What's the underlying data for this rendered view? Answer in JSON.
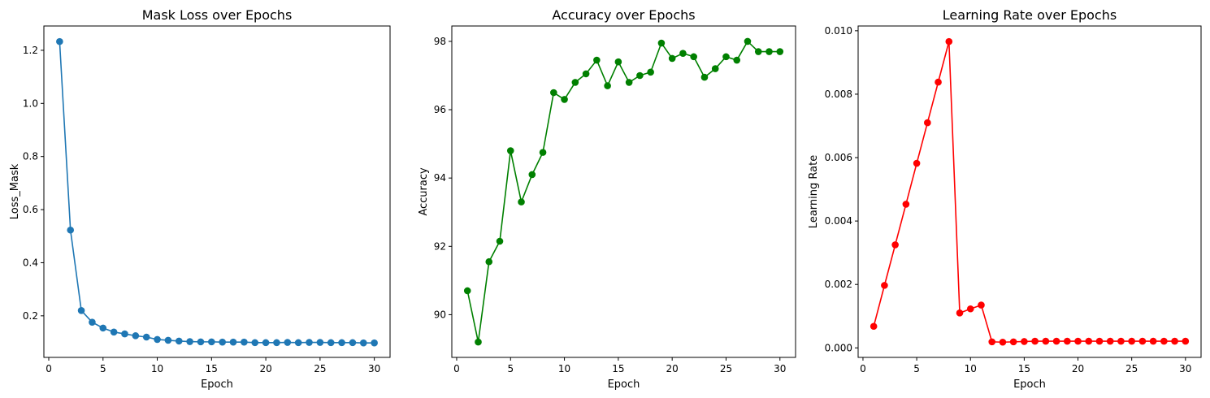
{
  "chart_data": [
    {
      "type": "line",
      "title": "Mask Loss over Epochs",
      "xlabel": "Epoch",
      "ylabel": "Loss_Mask",
      "color": "#1f77b4",
      "marker": "circle",
      "grid": false,
      "xlim": [
        -0.45,
        31.45
      ],
      "ylim": [
        0.0435,
        1.2915
      ],
      "xticks": [
        0,
        5,
        10,
        15,
        20,
        25,
        30
      ],
      "yticks": [
        0.2,
        0.4,
        0.6,
        0.8,
        1.0,
        1.2
      ],
      "ytick_labels": [
        "0.2",
        "0.4",
        "0.6",
        "0.8",
        "1.0",
        "1.2"
      ],
      "x": [
        1,
        2,
        3,
        4,
        5,
        6,
        7,
        8,
        9,
        10,
        11,
        12,
        13,
        14,
        15,
        16,
        17,
        18,
        19,
        20,
        21,
        22,
        23,
        24,
        25,
        26,
        27,
        28,
        29,
        30
      ],
      "values": [
        1.233,
        0.523,
        0.22,
        0.176,
        0.154,
        0.139,
        0.132,
        0.125,
        0.12,
        0.111,
        0.108,
        0.105,
        0.103,
        0.102,
        0.102,
        0.101,
        0.101,
        0.101,
        0.099,
        0.099,
        0.099,
        0.1,
        0.099,
        0.1,
        0.1,
        0.099,
        0.099,
        0.099,
        0.098,
        0.098
      ]
    },
    {
      "type": "line",
      "title": "Accuracy over Epochs",
      "xlabel": "Epoch",
      "ylabel": "Accuracy",
      "color": "#008000",
      "marker": "circle",
      "grid": false,
      "xlim": [
        -0.45,
        31.45
      ],
      "ylim": [
        88.75,
        98.45
      ],
      "xticks": [
        0,
        5,
        10,
        15,
        20,
        25,
        30
      ],
      "yticks": [
        90,
        92,
        94,
        96,
        98
      ],
      "ytick_labels": [
        "90",
        "92",
        "94",
        "96",
        "98"
      ],
      "x": [
        1,
        2,
        3,
        4,
        5,
        6,
        7,
        8,
        9,
        10,
        11,
        12,
        13,
        14,
        15,
        16,
        17,
        18,
        19,
        20,
        21,
        22,
        23,
        24,
        25,
        26,
        27,
        28,
        29,
        30
      ],
      "values": [
        90.7,
        89.2,
        91.55,
        92.15,
        94.8,
        93.3,
        94.1,
        94.75,
        96.5,
        96.3,
        96.8,
        97.05,
        97.45,
        96.7,
        97.4,
        96.8,
        97.0,
        97.1,
        97.95,
        97.5,
        97.65,
        97.55,
        96.95,
        97.2,
        97.55,
        97.45,
        98.0,
        97.7,
        97.7,
        97.7
      ]
    },
    {
      "type": "line",
      "title": "Learning Rate over Epochs",
      "xlabel": "Epoch",
      "ylabel": "Learning Rate",
      "color": "#ff0000",
      "marker": "circle",
      "grid": false,
      "xlim": [
        -0.45,
        31.45
      ],
      "ylim": [
        -0.0003,
        0.01015
      ],
      "xticks": [
        0,
        5,
        10,
        15,
        20,
        25,
        30
      ],
      "yticks": [
        0.0,
        0.002,
        0.004,
        0.006,
        0.008,
        0.01
      ],
      "ytick_labels": [
        "0.000",
        "0.002",
        "0.004",
        "0.006",
        "0.008",
        "0.010"
      ],
      "x": [
        1,
        2,
        3,
        4,
        5,
        6,
        7,
        8,
        9,
        10,
        11,
        12,
        13,
        14,
        15,
        16,
        17,
        18,
        19,
        20,
        21,
        22,
        23,
        24,
        25,
        26,
        27,
        28,
        29,
        30
      ],
      "values": [
        0.00068,
        0.00197,
        0.00325,
        0.00453,
        0.00582,
        0.0071,
        0.00838,
        0.00966,
        0.0011,
        0.00123,
        0.00135,
        0.00019,
        0.00018,
        0.00019,
        0.0002,
        0.00021,
        0.00021,
        0.00021,
        0.00021,
        0.00021,
        0.00021,
        0.00021,
        0.00021,
        0.00021,
        0.00021,
        0.00021,
        0.00021,
        0.00021,
        0.00021,
        0.00021
      ]
    }
  ]
}
